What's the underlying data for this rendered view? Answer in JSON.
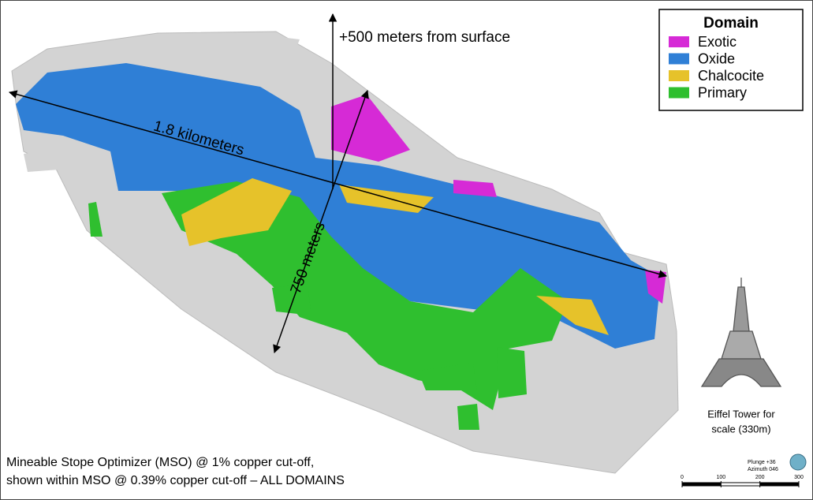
{
  "legend": {
    "title": "Domain",
    "items": [
      {
        "label": "Exotic",
        "color": "#d62ad6"
      },
      {
        "label": "Oxide",
        "color": "#2f7fd6"
      },
      {
        "label": "Chalcocite",
        "color": "#e6c22a"
      },
      {
        "label": "Primary",
        "color": "#2fbf2f"
      }
    ]
  },
  "annotations": {
    "height": "+500 meters from surface",
    "length": "1.8 kilometers",
    "width": "750 meters"
  },
  "caption": [
    "Mineable Stope Optimizer (MSO) @ 1% copper cut-off,",
    "shown within MSO @ 0.39% copper cut-off – ALL DOMAINS"
  ],
  "scale_reference": [
    "Eiffel Tower for",
    "scale (330m)"
  ],
  "orientation": [
    "Plunge +36",
    "Azimuth 046"
  ],
  "scale_bar": {
    "ticks": [
      0,
      100,
      200,
      300
    ]
  }
}
